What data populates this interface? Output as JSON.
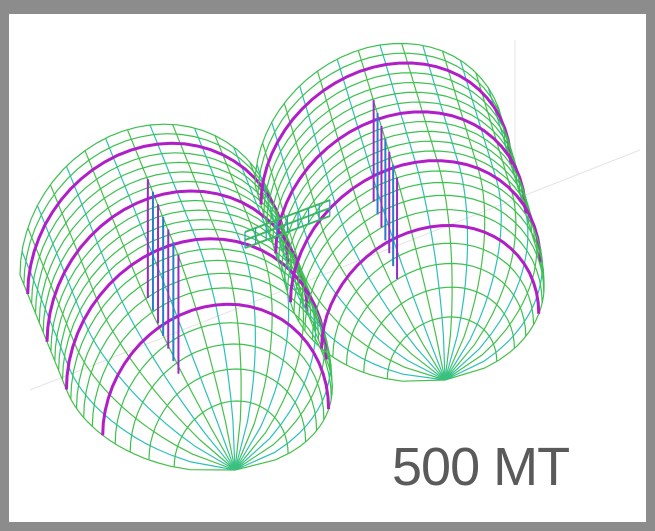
{
  "label": "500 MT"
}
